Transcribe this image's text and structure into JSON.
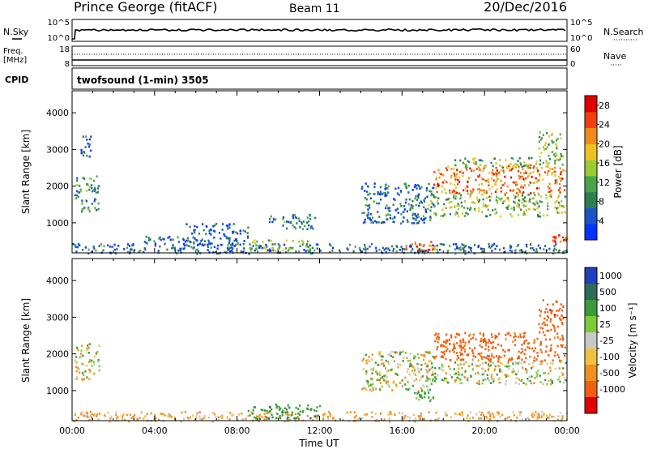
{
  "header": {
    "station": "Prince George (fitACF)",
    "beam": "Beam 11",
    "date": "20/Dec/2016",
    "cpid_program": "twofsound (1-min) 3505"
  },
  "panel_labels": {
    "nsky": "N.Sky",
    "nsearch": "N.Search",
    "freq_line1": "Freq.",
    "freq_line2": "[MHz]",
    "nave": "Nave",
    "cpid": "CPID",
    "nsky_top": "10^5",
    "nsky_bottom": "10^0",
    "nsearch_top": "10^5",
    "nsearch_bottom": "10^0",
    "freq_top": "18",
    "freq_bottom": "8",
    "nave_top": "60",
    "nave_bottom": "0"
  },
  "colors": {
    "power_scale": [
      "#0033ff",
      "#1a55c8",
      "#2e7f4f",
      "#4aa54a",
      "#9ccc34",
      "#f0c020",
      "#f08a1a",
      "#f04010",
      "#e00000"
    ],
    "velocity_scale": [
      "#2040c0",
      "#2d6b5a",
      "#3a9a3a",
      "#7ccc3a",
      "#c8c8c4",
      "#f0c040",
      "#f09020",
      "#f06010",
      "#e00000"
    ]
  },
  "chart_data": [
    {
      "type": "heatmap",
      "title": "Power",
      "xlabel": "",
      "ylabel": "Slant Range [km]",
      "x_ticks": [
        "00:00",
        "04:00",
        "08:00",
        "12:00",
        "16:00",
        "20:00",
        "00:00"
      ],
      "xlim_hours": [
        0,
        24
      ],
      "y_ticks": [
        1000,
        2000,
        3000,
        4000
      ],
      "ylim_km": [
        180,
        4600
      ],
      "colorbar": {
        "label": "Power [dB]",
        "ticks": [
          4,
          8,
          12,
          16,
          20,
          24,
          28
        ],
        "range": [
          0,
          30
        ]
      },
      "echo_regions": [
        {
          "t": [
            0.0,
            24.0
          ],
          "range_km": [
            180,
            450
          ],
          "power_db": 6
        },
        {
          "t": [
            0.1,
            1.3
          ],
          "range_km": [
            1300,
            2300
          ],
          "power_db": 10
        },
        {
          "t": [
            0.4,
            0.9
          ],
          "range_km": [
            2800,
            3400
          ],
          "power_db": 6
        },
        {
          "t": [
            3.2,
            5.8
          ],
          "range_km": [
            450,
            650
          ],
          "power_db": 6
        },
        {
          "t": [
            5.5,
            8.5
          ],
          "range_km": [
            400,
            1000
          ],
          "power_db": 5
        },
        {
          "t": [
            8.5,
            11.5
          ],
          "range_km": [
            250,
            550
          ],
          "power_db": 14
        },
        {
          "t": [
            9.5,
            11.8
          ],
          "range_km": [
            850,
            1250
          ],
          "power_db": 8
        },
        {
          "t": [
            14.0,
            17.5
          ],
          "range_km": [
            1000,
            2100
          ],
          "power_db": 6
        },
        {
          "t": [
            16.0,
            17.6
          ],
          "range_km": [
            250,
            550
          ],
          "power_db": 24
        },
        {
          "t": [
            17.5,
            23.9
          ],
          "range_km": [
            1800,
            2600
          ],
          "power_db": 22
        },
        {
          "t": [
            17.2,
            23.9
          ],
          "range_km": [
            1200,
            1800
          ],
          "power_db": 13
        },
        {
          "t": [
            18.5,
            22.5
          ],
          "range_km": [
            2500,
            2800
          ],
          "power_db": 12
        },
        {
          "t": [
            22.6,
            23.8
          ],
          "range_km": [
            2600,
            3500
          ],
          "power_db": 14
        },
        {
          "t": [
            23.2,
            24.0
          ],
          "range_km": [
            500,
            700
          ],
          "power_db": 26
        }
      ]
    },
    {
      "type": "heatmap",
      "title": "Velocity",
      "xlabel": "Time UT",
      "ylabel": "Slant Range [km]",
      "x_ticks": [
        "00:00",
        "04:00",
        "08:00",
        "12:00",
        "16:00",
        "20:00",
        "00:00"
      ],
      "xlim_hours": [
        0,
        24
      ],
      "y_ticks": [
        1000,
        2000,
        3000,
        4000
      ],
      "ylim_km": [
        180,
        4600
      ],
      "colorbar": {
        "label": "Velocity [m s⁻¹]",
        "ticks": [
          "1000",
          "500",
          "100",
          "25",
          "-25",
          "-100",
          "-500",
          "-1000"
        ]
      },
      "echo_regions": [
        {
          "t": [
            0.0,
            24.0
          ],
          "range_km": [
            180,
            450
          ],
          "velocity_ms": -100
        },
        {
          "t": [
            0.1,
            1.3
          ],
          "range_km": [
            1300,
            2300
          ],
          "velocity_ms": 0
        },
        {
          "t": [
            8.5,
            12.0
          ],
          "range_km": [
            250,
            650
          ],
          "velocity_ms": 200
        },
        {
          "t": [
            14.0,
            17.5
          ],
          "range_km": [
            1000,
            2100
          ],
          "velocity_ms": 0
        },
        {
          "t": [
            16.5,
            17.5
          ],
          "range_km": [
            700,
            1000
          ],
          "velocity_ms": 150
        },
        {
          "t": [
            17.5,
            23.9
          ],
          "range_km": [
            1800,
            2600
          ],
          "velocity_ms": -400
        },
        {
          "t": [
            17.2,
            23.9
          ],
          "range_km": [
            1200,
            1800
          ],
          "velocity_ms": 0
        },
        {
          "t": [
            22.6,
            23.8
          ],
          "range_km": [
            2600,
            3500
          ],
          "velocity_ms": -600
        }
      ]
    }
  ],
  "footer": {
    "xlabel": "Time UT"
  }
}
